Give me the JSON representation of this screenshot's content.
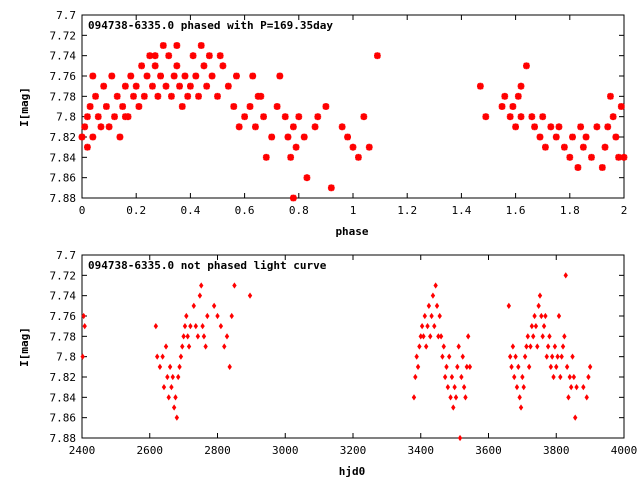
{
  "chart_data": [
    {
      "type": "scatter",
      "title": "094738-6335.0 phased with P=169.35day",
      "xlabel": "phase",
      "ylabel": "I[mag]",
      "xlim": [
        0,
        2
      ],
      "ylim": [
        7.88,
        7.7
      ],
      "y_inverted": true,
      "grid": false,
      "marker": "star",
      "color": "#ff0000",
      "x_ticks": [
        "0",
        "0.2",
        "0.4",
        "0.6",
        "0.8",
        "1",
        "1.2",
        "1.4",
        "1.6",
        "1.8",
        "2"
      ],
      "y_ticks": [
        "7.7",
        "7.72",
        "7.74",
        "7.76",
        "7.78",
        "7.8",
        "7.82",
        "7.84",
        "7.86",
        "7.88"
      ],
      "points": [
        [
          0.0,
          7.82
        ],
        [
          0.01,
          7.81
        ],
        [
          0.02,
          7.8
        ],
        [
          0.02,
          7.83
        ],
        [
          0.03,
          7.79
        ],
        [
          0.04,
          7.82
        ],
        [
          0.05,
          7.78
        ],
        [
          0.06,
          7.8
        ],
        [
          0.07,
          7.81
        ],
        [
          0.08,
          7.77
        ],
        [
          0.09,
          7.79
        ],
        [
          0.1,
          7.81
        ],
        [
          0.11,
          7.76
        ],
        [
          0.12,
          7.8
        ],
        [
          0.13,
          7.78
        ],
        [
          0.14,
          7.82
        ],
        [
          0.15,
          7.79
        ],
        [
          0.16,
          7.77
        ],
        [
          0.17,
          7.8
        ],
        [
          0.18,
          7.76
        ],
        [
          0.19,
          7.78
        ],
        [
          0.2,
          7.77
        ],
        [
          0.21,
          7.79
        ],
        [
          0.22,
          7.75
        ],
        [
          0.23,
          7.78
        ],
        [
          0.24,
          7.76
        ],
        [
          0.25,
          7.74
        ],
        [
          0.26,
          7.77
        ],
        [
          0.27,
          7.75
        ],
        [
          0.28,
          7.78
        ],
        [
          0.29,
          7.76
        ],
        [
          0.3,
          7.73
        ],
        [
          0.31,
          7.77
        ],
        [
          0.32,
          7.74
        ],
        [
          0.33,
          7.78
        ],
        [
          0.34,
          7.76
        ],
        [
          0.35,
          7.75
        ],
        [
          0.36,
          7.77
        ],
        [
          0.37,
          7.79
        ],
        [
          0.38,
          7.76
        ],
        [
          0.39,
          7.78
        ],
        [
          0.4,
          7.77
        ],
        [
          0.41,
          7.74
        ],
        [
          0.42,
          7.76
        ],
        [
          0.43,
          7.78
        ],
        [
          0.44,
          7.73
        ],
        [
          0.45,
          7.75
        ],
        [
          0.46,
          7.77
        ],
        [
          0.47,
          7.74
        ],
        [
          0.48,
          7.76
        ],
        [
          0.5,
          7.78
        ],
        [
          0.52,
          7.75
        ],
        [
          0.54,
          7.77
        ],
        [
          0.56,
          7.79
        ],
        [
          0.57,
          7.76
        ],
        [
          0.58,
          7.81
        ],
        [
          0.6,
          7.8
        ],
        [
          0.62,
          7.79
        ],
        [
          0.63,
          7.76
        ],
        [
          0.64,
          7.81
        ],
        [
          0.65,
          7.78
        ],
        [
          0.67,
          7.8
        ],
        [
          0.68,
          7.84
        ],
        [
          0.7,
          7.82
        ],
        [
          0.72,
          7.79
        ],
        [
          0.73,
          7.76
        ],
        [
          0.75,
          7.8
        ],
        [
          0.76,
          7.82
        ],
        [
          0.77,
          7.84
        ],
        [
          0.78,
          7.81
        ],
        [
          0.79,
          7.83
        ],
        [
          0.8,
          7.8
        ],
        [
          0.82,
          7.82
        ],
        [
          0.83,
          7.86
        ],
        [
          0.86,
          7.81
        ],
        [
          0.9,
          7.79
        ],
        [
          0.92,
          7.87
        ],
        [
          0.96,
          7.81
        ],
        [
          0.98,
          7.82
        ],
        [
          1.0,
          7.83
        ],
        [
          1.02,
          7.84
        ],
        [
          1.04,
          7.8
        ],
        [
          1.06,
          7.83
        ],
        [
          1.09,
          7.74
        ],
        [
          1.47,
          7.77
        ],
        [
          1.49,
          7.8
        ],
        [
          1.55,
          7.79
        ],
        [
          1.56,
          7.78
        ],
        [
          1.58,
          7.8
        ],
        [
          1.59,
          7.79
        ],
        [
          1.6,
          7.81
        ],
        [
          1.61,
          7.78
        ],
        [
          1.62,
          7.8
        ],
        [
          1.64,
          7.75
        ],
        [
          1.66,
          7.8
        ],
        [
          1.67,
          7.81
        ],
        [
          1.69,
          7.82
        ],
        [
          1.7,
          7.8
        ],
        [
          1.71,
          7.83
        ],
        [
          1.73,
          7.81
        ],
        [
          1.75,
          7.82
        ],
        [
          1.76,
          7.81
        ],
        [
          1.78,
          7.83
        ],
        [
          1.8,
          7.84
        ],
        [
          1.81,
          7.82
        ],
        [
          1.83,
          7.85
        ],
        [
          1.85,
          7.83
        ],
        [
          1.86,
          7.82
        ],
        [
          1.88,
          7.84
        ],
        [
          1.9,
          7.81
        ],
        [
          1.92,
          7.85
        ],
        [
          1.93,
          7.83
        ],
        [
          1.94,
          7.81
        ],
        [
          1.95,
          7.78
        ],
        [
          1.96,
          7.8
        ],
        [
          1.97,
          7.82
        ],
        [
          1.98,
          7.84
        ],
        [
          1.99,
          7.79
        ],
        [
          2.0,
          7.84
        ],
        [
          0.04,
          7.76
        ],
        [
          0.16,
          7.8
        ],
        [
          0.27,
          7.74
        ],
        [
          0.35,
          7.73
        ],
        [
          0.51,
          7.74
        ],
        [
          0.66,
          7.78
        ],
        [
          0.78,
          7.88
        ],
        [
          0.87,
          7.8
        ],
        [
          1.62,
          7.77
        ],
        [
          1.84,
          7.81
        ]
      ]
    },
    {
      "type": "scatter",
      "title": "094738-6335.0 not phased light curve",
      "xlabel": "hjd0",
      "ylabel": "I[mag]",
      "xlim": [
        2400,
        4000
      ],
      "ylim": [
        7.88,
        7.7
      ],
      "y_inverted": true,
      "grid": false,
      "marker": "diamond",
      "color": "#ff0000",
      "x_ticks": [
        "2400",
        "2600",
        "2800",
        "3000",
        "3200",
        "3400",
        "3600",
        "3800",
        "4000"
      ],
      "y_ticks": [
        "7.7",
        "7.72",
        "7.74",
        "7.76",
        "7.78",
        "7.8",
        "7.82",
        "7.84",
        "7.86",
        "7.88"
      ],
      "points": [
        [
          2402,
          7.8
        ],
        [
          2405,
          7.76
        ],
        [
          2408,
          7.77
        ],
        [
          2618,
          7.77
        ],
        [
          2622,
          7.8
        ],
        [
          2630,
          7.81
        ],
        [
          2638,
          7.8
        ],
        [
          2642,
          7.83
        ],
        [
          2648,
          7.79
        ],
        [
          2652,
          7.82
        ],
        [
          2656,
          7.84
        ],
        [
          2660,
          7.81
        ],
        [
          2664,
          7.83
        ],
        [
          2668,
          7.82
        ],
        [
          2672,
          7.85
        ],
        [
          2676,
          7.84
        ],
        [
          2680,
          7.86
        ],
        [
          2684,
          7.82
        ],
        [
          2688,
          7.81
        ],
        [
          2692,
          7.8
        ],
        [
          2696,
          7.79
        ],
        [
          2700,
          7.78
        ],
        [
          2704,
          7.77
        ],
        [
          2708,
          7.76
        ],
        [
          2712,
          7.78
        ],
        [
          2716,
          7.79
        ],
        [
          2720,
          7.77
        ],
        [
          2730,
          7.75
        ],
        [
          2736,
          7.77
        ],
        [
          2742,
          7.78
        ],
        [
          2748,
          7.74
        ],
        [
          2752,
          7.73
        ],
        [
          2756,
          7.77
        ],
        [
          2760,
          7.78
        ],
        [
          2765,
          7.79
        ],
        [
          2770,
          7.76
        ],
        [
          2790,
          7.75
        ],
        [
          2800,
          7.76
        ],
        [
          2810,
          7.77
        ],
        [
          2820,
          7.79
        ],
        [
          2828,
          7.78
        ],
        [
          2836,
          7.81
        ],
        [
          2842,
          7.76
        ],
        [
          2850,
          7.73
        ],
        [
          2896,
          7.74
        ],
        [
          3380,
          7.84
        ],
        [
          3384,
          7.82
        ],
        [
          3388,
          7.8
        ],
        [
          3392,
          7.81
        ],
        [
          3396,
          7.79
        ],
        [
          3400,
          7.78
        ],
        [
          3404,
          7.77
        ],
        [
          3408,
          7.78
        ],
        [
          3412,
          7.76
        ],
        [
          3416,
          7.79
        ],
        [
          3420,
          7.77
        ],
        [
          3424,
          7.75
        ],
        [
          3428,
          7.78
        ],
        [
          3432,
          7.76
        ],
        [
          3436,
          7.74
        ],
        [
          3440,
          7.77
        ],
        [
          3444,
          7.73
        ],
        [
          3448,
          7.75
        ],
        [
          3452,
          7.78
        ],
        [
          3456,
          7.76
        ],
        [
          3460,
          7.78
        ],
        [
          3464,
          7.8
        ],
        [
          3468,
          7.79
        ],
        [
          3472,
          7.82
        ],
        [
          3476,
          7.81
        ],
        [
          3480,
          7.83
        ],
        [
          3484,
          7.8
        ],
        [
          3488,
          7.84
        ],
        [
          3492,
          7.82
        ],
        [
          3496,
          7.85
        ],
        [
          3500,
          7.83
        ],
        [
          3504,
          7.84
        ],
        [
          3508,
          7.81
        ],
        [
          3512,
          7.79
        ],
        [
          3516,
          7.88
        ],
        [
          3520,
          7.82
        ],
        [
          3524,
          7.8
        ],
        [
          3528,
          7.83
        ],
        [
          3532,
          7.84
        ],
        [
          3536,
          7.81
        ],
        [
          3540,
          7.78
        ],
        [
          3545,
          7.81
        ],
        [
          3660,
          7.75
        ],
        [
          3664,
          7.8
        ],
        [
          3668,
          7.81
        ],
        [
          3672,
          7.79
        ],
        [
          3676,
          7.82
        ],
        [
          3680,
          7.8
        ],
        [
          3684,
          7.83
        ],
        [
          3688,
          7.81
        ],
        [
          3692,
          7.84
        ],
        [
          3696,
          7.85
        ],
        [
          3700,
          7.82
        ],
        [
          3704,
          7.83
        ],
        [
          3708,
          7.8
        ],
        [
          3712,
          7.79
        ],
        [
          3716,
          7.78
        ],
        [
          3720,
          7.81
        ],
        [
          3724,
          7.79
        ],
        [
          3728,
          7.77
        ],
        [
          3732,
          7.78
        ],
        [
          3736,
          7.76
        ],
        [
          3740,
          7.77
        ],
        [
          3744,
          7.79
        ],
        [
          3748,
          7.75
        ],
        [
          3752,
          7.74
        ],
        [
          3756,
          7.76
        ],
        [
          3760,
          7.78
        ],
        [
          3764,
          7.77
        ],
        [
          3768,
          7.76
        ],
        [
          3772,
          7.8
        ],
        [
          3776,
          7.79
        ],
        [
          3780,
          7.78
        ],
        [
          3784,
          7.81
        ],
        [
          3788,
          7.8
        ],
        [
          3792,
          7.82
        ],
        [
          3796,
          7.79
        ],
        [
          3800,
          7.81
        ],
        [
          3804,
          7.8
        ],
        [
          3808,
          7.76
        ],
        [
          3812,
          7.82
        ],
        [
          3816,
          7.8
        ],
        [
          3820,
          7.79
        ],
        [
          3824,
          7.78
        ],
        [
          3828,
          7.72
        ],
        [
          3832,
          7.81
        ],
        [
          3836,
          7.84
        ],
        [
          3840,
          7.82
        ],
        [
          3844,
          7.83
        ],
        [
          3848,
          7.8
        ],
        [
          3852,
          7.82
        ],
        [
          3856,
          7.86
        ],
        [
          3860,
          7.83
        ],
        [
          3880,
          7.83
        ],
        [
          3890,
          7.84
        ],
        [
          3895,
          7.82
        ],
        [
          3900,
          7.81
        ]
      ]
    }
  ]
}
